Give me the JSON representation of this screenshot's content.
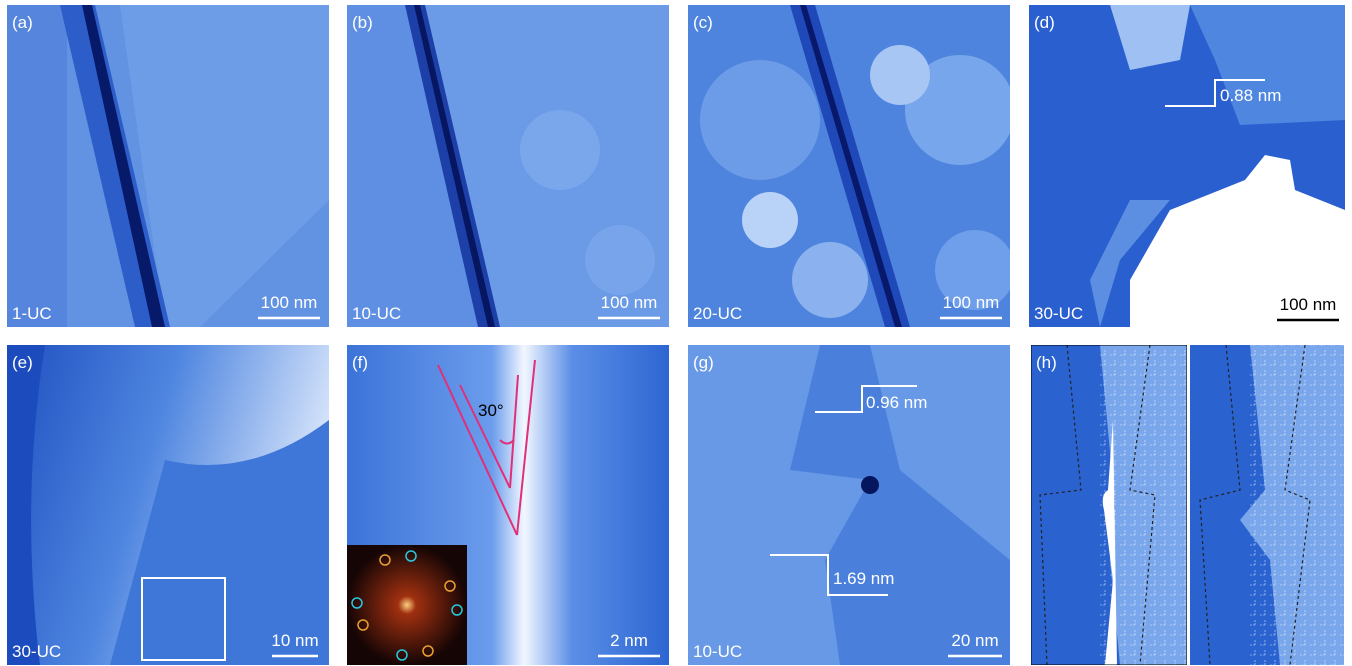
{
  "panels": [
    {
      "label": "(a)",
      "sample": "1-UC",
      "scale_bar": "100 nm"
    },
    {
      "label": "(b)",
      "sample": "10-UC",
      "scale_bar": "100 nm"
    },
    {
      "label": "(c)",
      "sample": "20-UC",
      "scale_bar": "100 nm"
    },
    {
      "label": "(d)",
      "sample": "30-UC",
      "scale_bar": "100 nm",
      "annotations": [
        "0.88 nm"
      ]
    },
    {
      "label": "(e)",
      "sample": "30-UC",
      "scale_bar": "10 nm"
    },
    {
      "label": "(f)",
      "scale_bar": "2 nm",
      "annotations": [
        "30°"
      ]
    },
    {
      "label": "(g)",
      "sample": "10-UC",
      "scale_bar": "20 nm",
      "annotations": [
        "0.96 nm",
        "1.69 nm"
      ]
    },
    {
      "label": "(h)"
    }
  ]
}
